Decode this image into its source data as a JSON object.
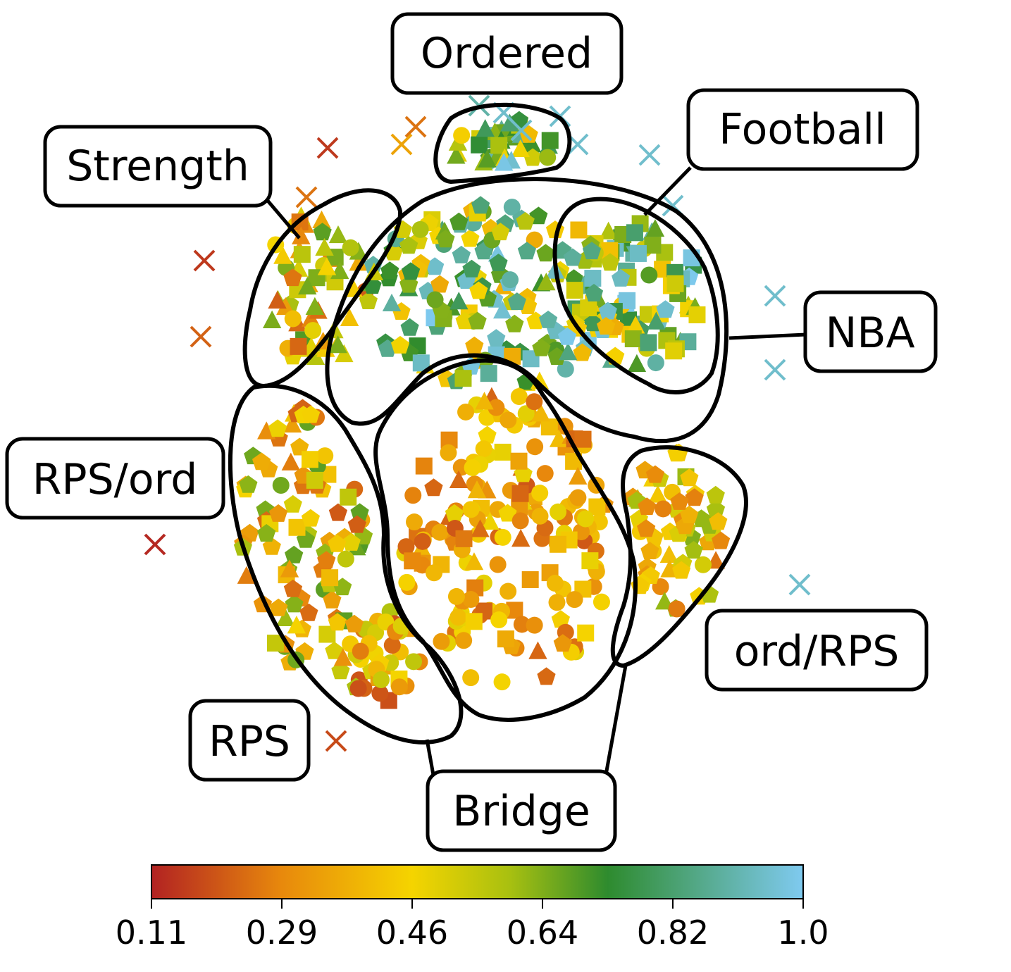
{
  "chart_data": {
    "type": "scatter",
    "title": "",
    "xlabel": "",
    "ylabel": "",
    "grid": false,
    "cluster_labels": [
      "Ordered",
      "Football",
      "Strength",
      "NBA",
      "RPS/ord",
      "ord/RPS",
      "RPS",
      "Bridge"
    ],
    "colorbar": {
      "min": 0.11,
      "max": 1.0,
      "ticks": [
        "0.11",
        "0.29",
        "0.46",
        "0.64",
        "0.82",
        "1.0"
      ],
      "colors": [
        "#b22222",
        "#e8890c",
        "#f5d400",
        "#a8c010",
        "#2e8b2e",
        "#7fcaf0"
      ]
    },
    "marker_shapes": [
      "circle",
      "pentagon",
      "triangle",
      "square",
      "x"
    ],
    "clusters": [
      {
        "name": "Ordered",
        "dominant_marker": "triangle",
        "value_range": [
          0.4,
          1.0
        ],
        "approx_points": 40
      },
      {
        "name": "Football",
        "dominant_marker": "square",
        "value_range": [
          0.4,
          1.0
        ],
        "approx_points": 70
      },
      {
        "name": "Strength",
        "dominant_marker": "triangle",
        "value_range": [
          0.2,
          0.7
        ],
        "approx_points": 60
      },
      {
        "name": "NBA",
        "dominant_marker": "pentagon",
        "value_range": [
          0.35,
          1.0
        ],
        "approx_points": 160
      },
      {
        "name": "RPS/ord",
        "dominant_marker": "pentagon",
        "value_range": [
          0.2,
          0.7
        ],
        "approx_points": 90
      },
      {
        "name": "RPS",
        "dominant_marker": "circle",
        "value_range": [
          0.15,
          0.6
        ],
        "approx_points": 40
      },
      {
        "name": "Bridge",
        "dominant_marker": "circle",
        "value_range": [
          0.2,
          0.5
        ],
        "approx_points": 170
      },
      {
        "name": "ord/RPS",
        "dominant_marker": "pentagon",
        "value_range": [
          0.25,
          0.65
        ],
        "approx_points": 60
      }
    ],
    "outliers": {
      "marker": "x",
      "value_range": [
        0.11,
        1.0
      ],
      "approx_points": 22
    }
  }
}
